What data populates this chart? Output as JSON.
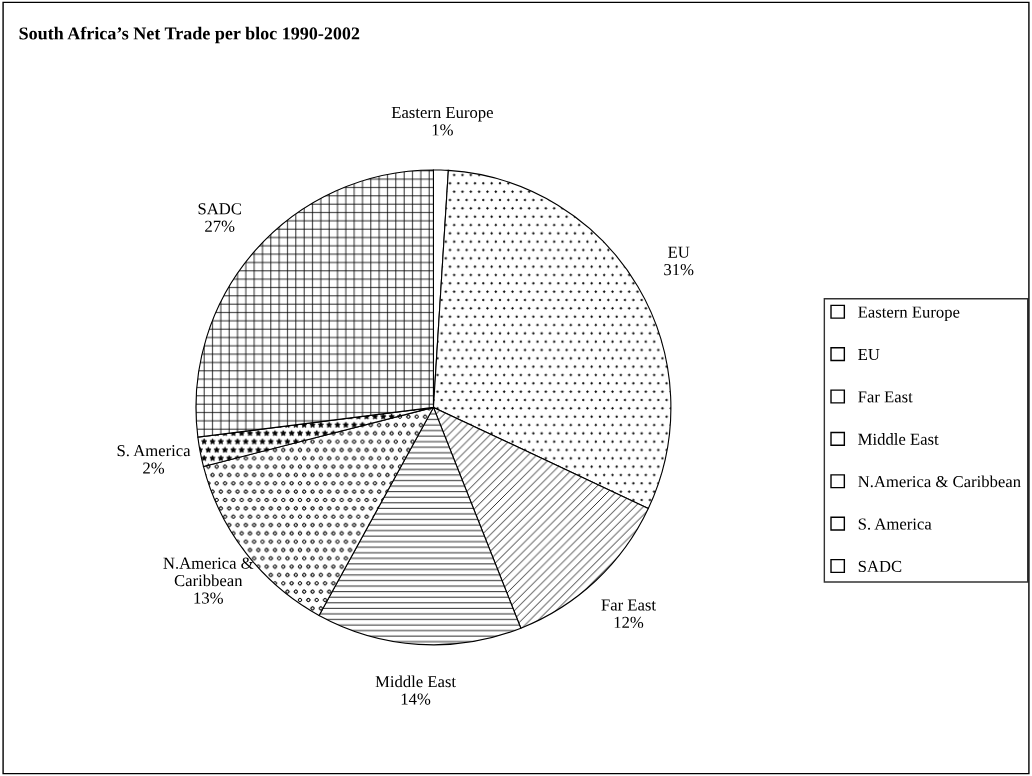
{
  "chart_data": {
    "type": "pie",
    "title": "South Africa’s Net Trade per bloc 1990-2002",
    "categories": [
      "Eastern Europe",
      "EU",
      "Far East",
      "Middle East",
      "N.America & Caribbean",
      "S. America",
      "SADC"
    ],
    "values": [
      1,
      31,
      12,
      14,
      13,
      2,
      27
    ],
    "colors": [
      "#ffffff",
      "#ffffff",
      "#ffffff",
      "#ffffff",
      "#ffffff",
      "#ffffff",
      "#ffffff"
    ],
    "value_labels": [
      "1%",
      "31%",
      "12%",
      "14%",
      "13%",
      "2%",
      "27%"
    ],
    "legend": "right"
  }
}
